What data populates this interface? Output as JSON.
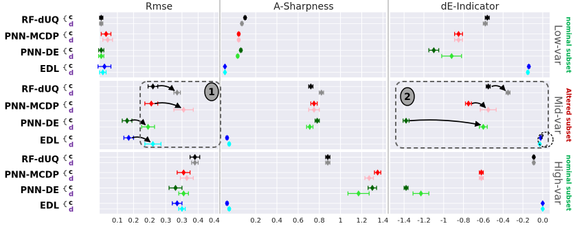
{
  "methods": [
    "RF-dUQ",
    "PNN-MCDP",
    "PNN-DE",
    "EDL"
  ],
  "variants": [
    "c",
    "d"
  ],
  "colors": [
    [
      "#000000",
      "#8c8c8c"
    ],
    [
      "#ff0000",
      "#ffb6c1"
    ],
    [
      "#006400",
      "#32e632"
    ],
    [
      "#0000ff",
      "#00ffff"
    ]
  ],
  "rows": [
    {
      "label": "Low-var",
      "subset": "nominal subset",
      "color": "#00b050"
    },
    {
      "label": "Mid-var",
      "subset": "Altered subset",
      "color": "#c00000"
    },
    {
      "label": "High-var",
      "subset": "nominal subset",
      "color": "#00b050"
    }
  ],
  "annotations": [
    "1",
    "2",
    "?"
  ],
  "chart_data": [
    {
      "type": "dot_errorbar",
      "title": "Rmse",
      "xlim": [
        0.045,
        0.413
      ],
      "xticks": [
        0.1,
        {
          "value": 0.15,
          "label": "0.2"
        },
        0.2,
        {
          "value": 0.25,
          "label": "0.3"
        },
        0.3,
        {
          "value": 0.35,
          "label": "0.4"
        },
        0.4
      ],
      "panels": [
        {
          "values": [
            [
              0.05,
              0.05
            ],
            [
              0.065,
              0.07
            ],
            [
              0.05,
              0.05
            ],
            [
              0.06,
              0.055
            ]
          ],
          "errors": [
            [
              0.005,
              0.005
            ],
            [
              0.015,
              0.015
            ],
            [
              0.008,
              0.008
            ],
            [
              0.02,
              0.01
            ]
          ]
        },
        {
          "values": [
            [
              0.21,
              0.285
            ],
            [
              0.205,
              0.305
            ],
            [
              0.13,
              0.195
            ],
            [
              0.135,
              0.21
            ]
          ],
          "errors": [
            [
              0.015,
              0.01
            ],
            [
              0.02,
              0.03
            ],
            [
              0.015,
              0.02
            ],
            [
              0.015,
              0.025
            ]
          ]
        },
        {
          "values": [
            [
              0.34,
              0.34
            ],
            [
              0.305,
              0.315
            ],
            [
              0.28,
              0.305
            ],
            [
              0.285,
              0.3
            ]
          ],
          "errors": [
            [
              0.015,
              0.01
            ],
            [
              0.02,
              0.02
            ],
            [
              0.02,
              0.015
            ],
            [
              0.015,
              0.01
            ]
          ]
        }
      ]
    },
    {
      "type": "dot_errorbar",
      "title": "A-Sharpness",
      "xlim": [
        -0.125,
        1.43
      ],
      "xticks": [
        0.2,
        0.4,
        0.6,
        0.8,
        1,
        1.2,
        1.4
      ],
      "panels": [
        {
          "values": [
            [
              0.1,
              0.07
            ],
            [
              0.04,
              0.04
            ],
            [
              0.06,
              0.03
            ],
            [
              -0.09,
              -0.09
            ]
          ],
          "errors": [
            [
              0.01,
              0.01
            ],
            [
              0.01,
              0.01
            ],
            [
              0.01,
              0.01
            ],
            [
              0.005,
              0.005
            ]
          ]
        },
        {
          "values": [
            [
              0.72,
              0.82
            ],
            [
              0.75,
              0.75
            ],
            [
              0.78,
              0.71
            ],
            [
              -0.07,
              -0.05
            ]
          ],
          "errors": [
            [
              0.02,
              0.02
            ],
            [
              0.03,
              0.05
            ],
            [
              0.02,
              0.03
            ],
            [
              0.01,
              0.01
            ]
          ]
        },
        {
          "values": [
            [
              0.88,
              0.88
            ],
            [
              1.35,
              1.27
            ],
            [
              1.3,
              1.17
            ],
            [
              -0.07,
              -0.05
            ]
          ],
          "errors": [
            [
              0.02,
              0.02
            ],
            [
              0.03,
              0.04
            ],
            [
              0.04,
              0.1
            ],
            [
              0.01,
              0.01
            ]
          ]
        }
      ]
    },
    {
      "type": "dot_errorbar",
      "title": "dE-Indicator",
      "xlim": [
        -1.54,
        0.07
      ],
      "xticks": [
        -1.4,
        -1.2,
        -1,
        -0.8,
        -0.6,
        -0.4,
        -0.2,
        {
          "value": 0,
          "label": "0.0"
        }
      ],
      "panels": [
        {
          "values": [
            [
              -0.56,
              -0.58
            ],
            [
              -0.85,
              -0.85
            ],
            [
              -1.1,
              -0.92
            ],
            [
              -0.14,
              -0.15
            ]
          ],
          "errors": [
            [
              0.02,
              0.02
            ],
            [
              0.04,
              0.04
            ],
            [
              0.05,
              0.1
            ],
            [
              0.01,
              0.01
            ]
          ]
        },
        {
          "values": [
            [
              -0.55,
              -0.35
            ],
            [
              -0.75,
              -0.55
            ],
            [
              -1.38,
              -0.6
            ],
            [
              -0.02,
              -0.03
            ]
          ],
          "errors": [
            [
              0.02,
              0.02
            ],
            [
              0.03,
              0.08
            ],
            [
              0.03,
              0.04
            ],
            [
              0.005,
              0.005
            ]
          ]
        },
        {
          "values": [
            [
              -0.09,
              -0.09
            ],
            [
              -0.62,
              -0.62
            ],
            [
              -1.38,
              -1.23
            ],
            [
              0,
              0
            ]
          ],
          "errors": [
            [
              0.01,
              0.01
            ],
            [
              0.02,
              0.02
            ],
            [
              0.02,
              0.08
            ],
            [
              0.005,
              0.005
            ]
          ]
        }
      ]
    }
  ]
}
